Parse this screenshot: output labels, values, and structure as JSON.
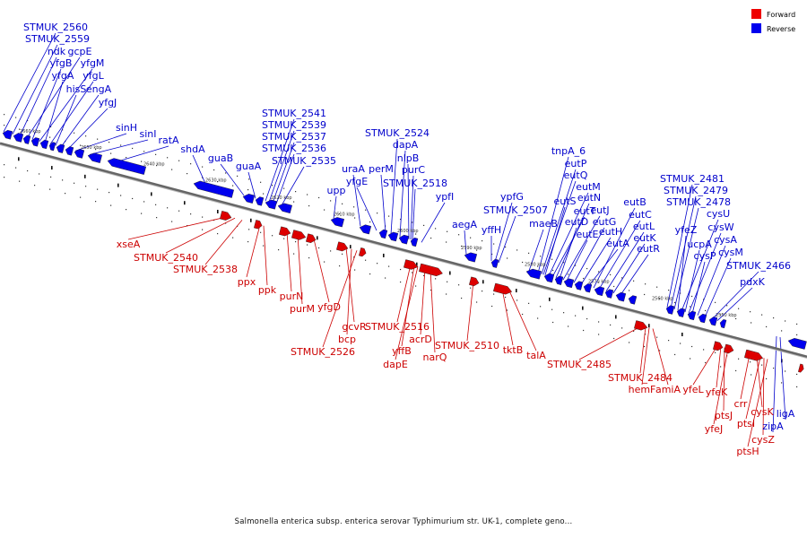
{
  "colors": {
    "forward": "#dd0000",
    "reverse": "#0000ee",
    "forward_text": "#cc0000",
    "reverse_text": "#0000cc",
    "backbone": "#666666"
  },
  "legend": [
    {
      "label": "Forward",
      "color": "#ee0000"
    },
    {
      "label": "Reverse",
      "color": "#0000ee"
    }
  ],
  "caption": "Salmonella enterica subsp. enterica serovar Typhimurium str. UK-1, complete geno...",
  "tick_labels": [
    "2660 kbp",
    "2650 kbp",
    "2640 kbp",
    "2630 kbp",
    "2620 kbp",
    "2610 kbp",
    "2600 kbp",
    "2590 kbp",
    "2580 kbp",
    "2570 kbp",
    "2560 kbp",
    "2550 kbp"
  ],
  "reverse_labels": [
    "STMUK_2560",
    "STMUK_2559",
    "ndk",
    "gcpE",
    "yfgB",
    "yfgM",
    "yfgA",
    "yfgL",
    "hisS",
    "engA",
    "yfgJ",
    "sinH",
    "sinI",
    "ratA",
    "shdA",
    "guaB",
    "guaA",
    "STMUK_2541",
    "STMUK_2539",
    "STMUK_2537",
    "STMUK_2536",
    "STMUK_2535",
    "upp",
    "uraA",
    "yfgE",
    "perM",
    "STMUK_2524",
    "dapA",
    "nlpB",
    "purC",
    "STMUK_2518",
    "ypfI",
    "aegA",
    "yffH",
    "ypfG",
    "STMUK_2507",
    "maeB",
    "tnpA_6",
    "eutP",
    "eutQ",
    "eutS",
    "eutM",
    "eutT",
    "eutN",
    "eutD",
    "eutJ",
    "eutE",
    "eutG",
    "eutH",
    "eutA",
    "eutB",
    "eutC",
    "eutL",
    "eutK",
    "eutR",
    "STMUK_2481",
    "STMUK_2479",
    "STMUK_2478",
    "yfeZ",
    "cysU",
    "ucpA",
    "cysW",
    "cysP",
    "cysA",
    "cysM",
    "STMUK_2466",
    "pdxK",
    "ligA",
    "zipA"
  ],
  "forward_labels": [
    "xseA",
    "STMUK_2540",
    "STMUK_2538",
    "ppx",
    "ppk",
    "purN",
    "purM",
    "yfgD",
    "gcvR",
    "bcp",
    "STMUK_2526",
    "STMUK_2516",
    "yffB",
    "dapE",
    "acrD",
    "narQ",
    "STMUK_2510",
    "tktB",
    "talA",
    "STMUK_2485",
    "STMUK_2484",
    "hemF",
    "amiA",
    "yfeL",
    "yfeK",
    "ptsJ",
    "yfeJ",
    "crr",
    "cysK",
    "ptsI",
    "cysZ",
    "ptsH"
  ]
}
